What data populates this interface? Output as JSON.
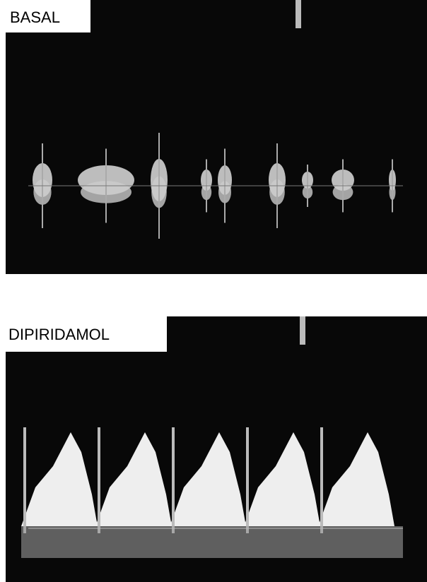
{
  "panels": [
    {
      "label": "BASAL"
    },
    {
      "label": "DIPIRIDAMOL"
    }
  ]
}
